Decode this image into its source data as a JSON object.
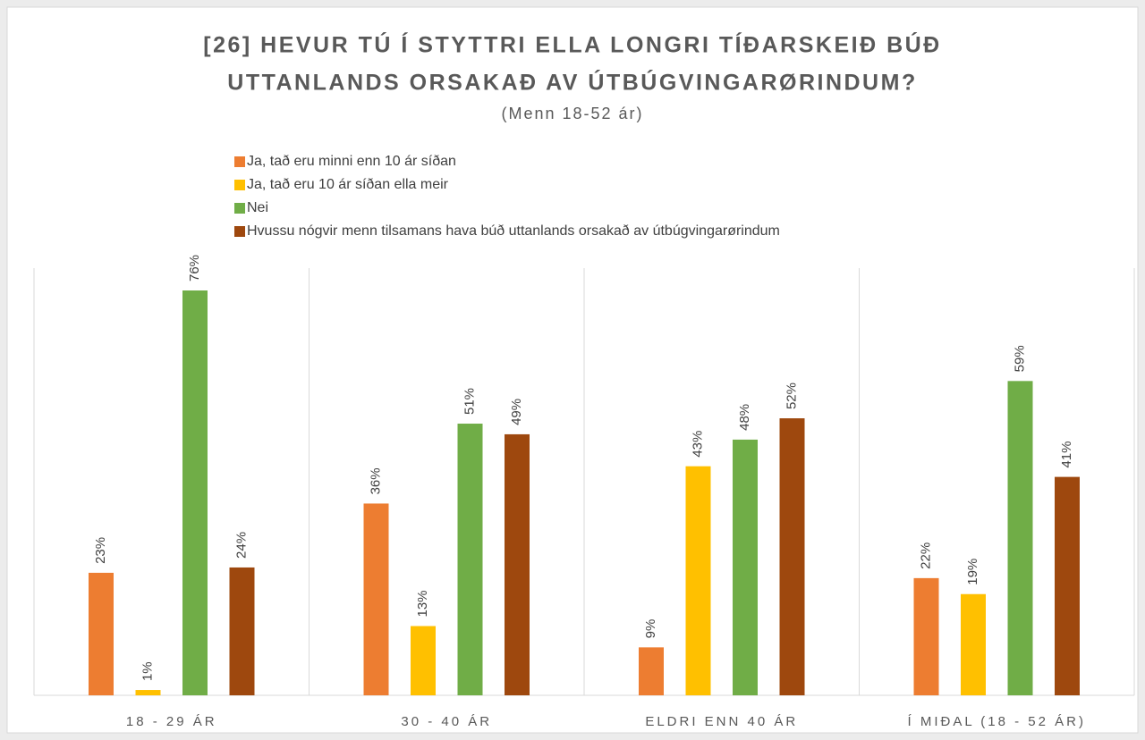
{
  "chart_data": {
    "type": "bar",
    "title": [
      "[26] HEVUR TÚ Í STYTTRI ELLA LONGRI TÍÐARSKEIÐ BÚÐ",
      "UTTANLANDS ORSAKAÐ AV ÚTBÚGVINGARØRINDUM?"
    ],
    "subtitle": "(Menn 18-52 ár)",
    "categories": [
      "18 - 29 ÁR",
      "30 - 40 ÁR",
      "ELDRI ENN 40 ÁR",
      "Í MIÐAL (18 - 52 ÁR)"
    ],
    "series": [
      {
        "name": "Ja, tað eru minni enn 10 ár síðan",
        "color": "#ED7D31",
        "values": [
          23,
          36,
          9,
          22
        ],
        "value_labels": [
          "23%",
          "36%",
          "9%",
          "22%"
        ]
      },
      {
        "name": "Ja, tað eru 10 ár síðan ella meir",
        "color": "#FFC000",
        "values": [
          1,
          13,
          43,
          19
        ],
        "value_labels": [
          "1%",
          "13%",
          "43%",
          "19%"
        ]
      },
      {
        "name": "Nei",
        "color": "#70AD47",
        "values": [
          76,
          51,
          48,
          59
        ],
        "value_labels": [
          "76%",
          "51%",
          "48%",
          "59%"
        ]
      },
      {
        "name": "Hvussu nógvir menn tilsamans hava búð uttanlands orsakað av útbúgvingarørindum",
        "color": "#9E480E",
        "values": [
          24,
          49,
          52,
          41
        ],
        "value_labels": [
          "24%",
          "49%",
          "52%",
          "41%"
        ]
      }
    ],
    "legend": "top"
  }
}
